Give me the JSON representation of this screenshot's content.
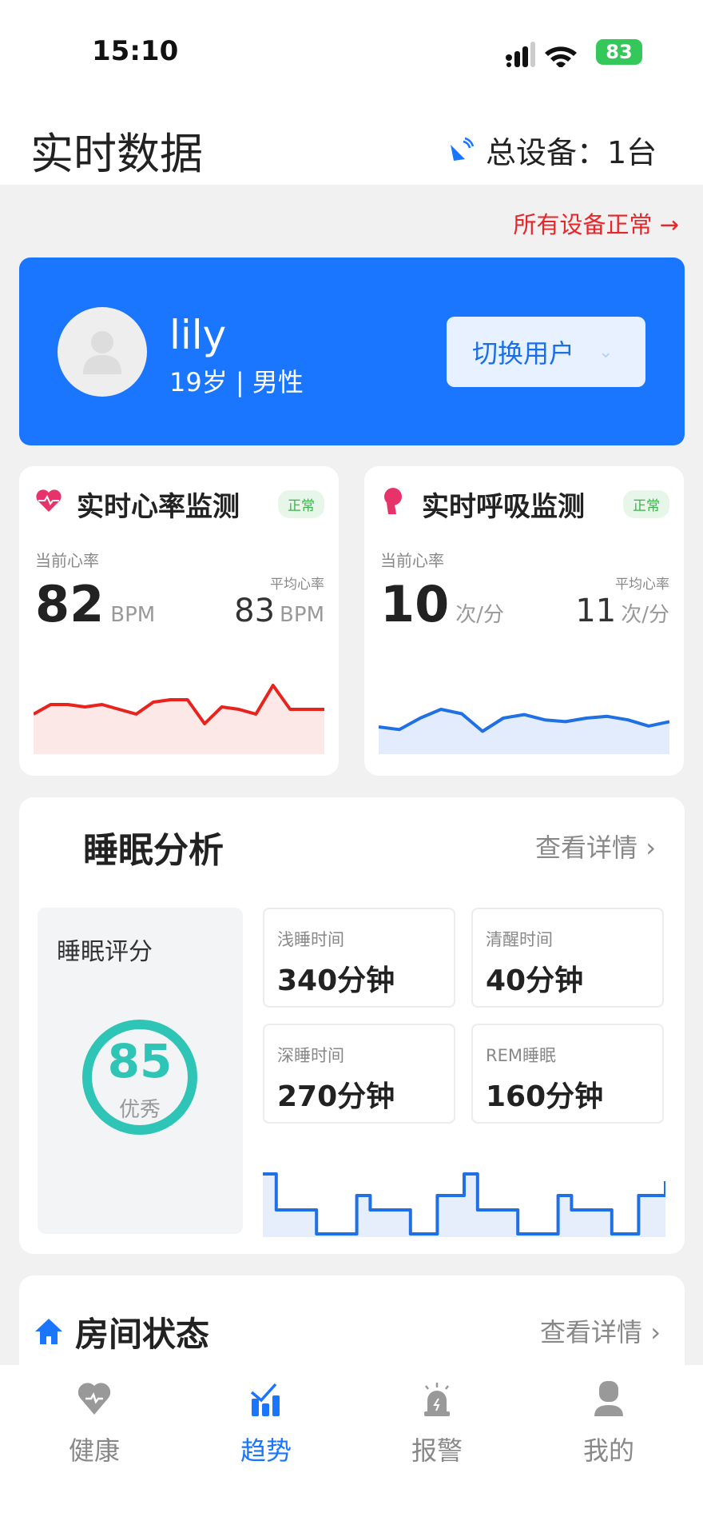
{
  "status_bar": {
    "time": "15:10",
    "battery": "83"
  },
  "header": {
    "title": "实时数据",
    "device_label": "总设备：1台"
  },
  "device_status": "所有设备正常 →",
  "user": {
    "name": "lily",
    "info": "19岁 | 男性",
    "switch_label": "切换用户"
  },
  "heart": {
    "title": "实时心率监测",
    "badge": "正常",
    "current_label": "当前心率",
    "current": "82",
    "unit": "BPM",
    "avg_label": "平均心率",
    "avg": "83",
    "avg_unit": "BPM",
    "color": "#e8231e",
    "trend": [
      80,
      82,
      82,
      81.5,
      82,
      81,
      80,
      82.5,
      83,
      83,
      78,
      81.5,
      81,
      80,
      86,
      81,
      81,
      81
    ]
  },
  "breath": {
    "title": "实时呼吸监测",
    "badge": "正常",
    "current_label": "当前心率",
    "current": "10",
    "unit": "次/分",
    "avg_label": "平均心率",
    "avg": "11",
    "avg_unit": "次/分",
    "color": "#1f6fe5",
    "trend": [
      9,
      8.7,
      10,
      11,
      10.5,
      8.5,
      10,
      10.4,
      9.8,
      9.6,
      10,
      10.2,
      9.8,
      9.1,
      9.6
    ]
  },
  "sleep": {
    "title": "睡眠分析",
    "more": "查看详情 ›",
    "score_label": "睡眠评分",
    "score": "85",
    "grade": "优秀",
    "accent": "#2ec4b6",
    "stats": [
      {
        "label": "浅睡时间",
        "value": "340分钟"
      },
      {
        "label": "清醒时间",
        "value": "40分钟"
      },
      {
        "label": "深睡时间",
        "value": "270分钟"
      },
      {
        "label": "REM睡眠",
        "value": "160分钟"
      }
    ],
    "trend": [
      3.5,
      2,
      2,
      2,
      1,
      1,
      1,
      2.6,
      2,
      2,
      2,
      1,
      1,
      2.6,
      2.6,
      3.5,
      2,
      2,
      2,
      1,
      1,
      1,
      2.6,
      2,
      2,
      2,
      1,
      1,
      2.6,
      2.6,
      3.2
    ]
  },
  "room": {
    "title": "房间状态",
    "more": "查看详情 ›"
  },
  "tabs": [
    {
      "label": "健康",
      "icon": "heart-pulse-icon"
    },
    {
      "label": "趋势",
      "icon": "trend-chart-icon",
      "active": true
    },
    {
      "label": "报警",
      "icon": "alarm-light-icon"
    },
    {
      "label": "我的",
      "icon": "person-icon"
    }
  ]
}
